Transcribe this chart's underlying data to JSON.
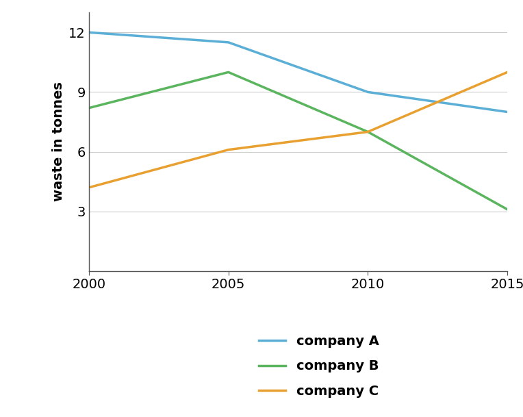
{
  "years": [
    2000,
    2005,
    2010,
    2015
  ],
  "company_A": [
    12,
    11.5,
    9,
    8
  ],
  "company_B": [
    8.2,
    10,
    7,
    3.1
  ],
  "company_C": [
    4.2,
    6.1,
    7,
    10
  ],
  "color_A": "#5BAFD6",
  "color_B": "#5BB55E",
  "color_C": "#E8A030",
  "ylabel": "waste in tonnes",
  "yticks": [
    3,
    6,
    9,
    12
  ],
  "xticks": [
    2000,
    2005,
    2010,
    2015
  ],
  "ylim": [
    0,
    13
  ],
  "xlim": [
    2000,
    2015
  ],
  "legend_labels": [
    "company A",
    "company B",
    "company C"
  ],
  "line_width": 2.5,
  "legend_fontsize": 14,
  "tick_fontsize": 14,
  "ylabel_fontsize": 14,
  "grid_color": "#cccccc",
  "spine_color": "#555555"
}
